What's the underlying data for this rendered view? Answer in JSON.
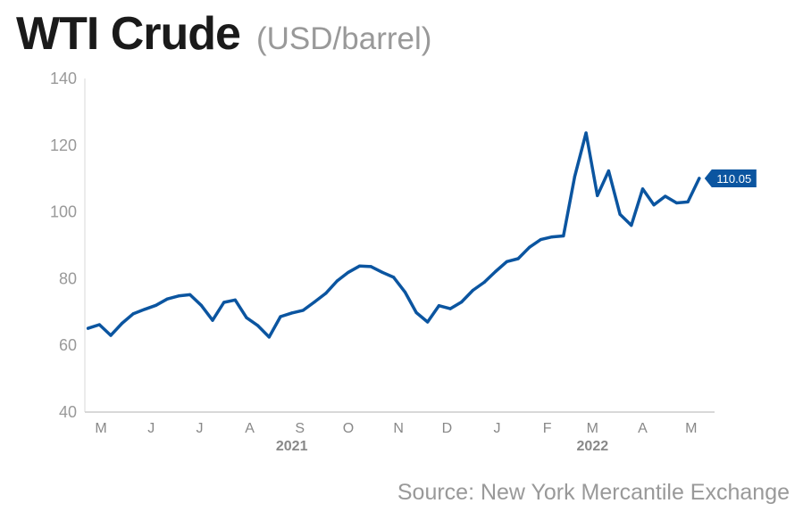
{
  "chart_data": {
    "type": "line",
    "title": "WTI Crude",
    "subtitle": "(USD/barrel)",
    "source": "Source: New York Mercantile Exchange",
    "ylim": [
      40,
      140
    ],
    "yticks": [
      "40",
      "60",
      "80",
      "100",
      "120",
      "140"
    ],
    "month_ticks": [
      "M",
      "J",
      "J",
      "A",
      "S",
      "O",
      "N",
      "D",
      "J",
      "F",
      "M",
      "A",
      "M"
    ],
    "years": [
      "2021",
      "2022"
    ],
    "last_value_label": "110.05",
    "grid": false,
    "series": [
      {
        "color": "#0b55a0",
        "x": [
          "2021-05-03",
          "2021-05-10",
          "2021-05-17",
          "2021-05-24",
          "2021-05-31",
          "2021-06-07",
          "2021-06-14",
          "2021-06-21",
          "2021-06-28",
          "2021-07-05",
          "2021-07-12",
          "2021-07-19",
          "2021-07-26",
          "2021-08-02",
          "2021-08-09",
          "2021-08-16",
          "2021-08-23",
          "2021-08-30",
          "2021-09-06",
          "2021-09-13",
          "2021-09-20",
          "2021-09-27",
          "2021-10-04",
          "2021-10-11",
          "2021-10-18",
          "2021-10-25",
          "2021-11-01",
          "2021-11-08",
          "2021-11-15",
          "2021-11-22",
          "2021-11-29",
          "2021-12-06",
          "2021-12-13",
          "2021-12-20",
          "2021-12-27",
          "2022-01-03",
          "2022-01-10",
          "2022-01-17",
          "2022-01-24",
          "2022-01-31",
          "2022-02-07",
          "2022-02-14",
          "2022-02-21",
          "2022-02-28",
          "2022-03-07",
          "2022-03-14",
          "2022-03-21",
          "2022-03-28",
          "2022-04-04",
          "2022-04-11",
          "2022-04-18",
          "2022-04-25",
          "2022-05-02",
          "2022-05-09",
          "2022-05-16"
        ],
        "y": [
          65.1,
          66.2,
          63.0,
          66.6,
          69.5,
          70.8,
          72.0,
          73.9,
          74.8,
          75.2,
          72.0,
          67.5,
          72.9,
          73.6,
          68.3,
          65.9,
          62.5,
          68.6,
          69.7,
          70.5,
          73.0,
          75.6,
          79.3,
          81.9,
          83.8,
          83.6,
          81.9,
          80.4,
          76.0,
          69.8,
          67.0,
          71.9,
          71.0,
          73.0,
          76.5,
          78.9,
          82.1,
          85.1,
          86.0,
          89.4,
          91.7,
          92.5,
          92.8,
          110.6,
          123.7,
          104.9,
          112.3,
          99.3,
          96.0,
          106.9,
          102.1,
          104.7,
          102.7,
          103.0,
          110.05
        ]
      }
    ]
  }
}
